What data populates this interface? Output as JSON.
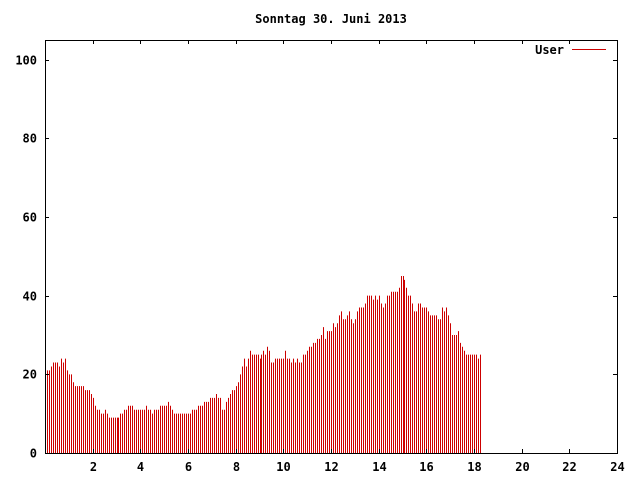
{
  "chart_data": {
    "type": "bar",
    "title": "Sonntag 30. Juni 2013",
    "xlabel": "",
    "ylabel": "",
    "xlim": [
      0,
      24
    ],
    "ylim": [
      0,
      105
    ],
    "xticks": [
      2,
      4,
      6,
      8,
      10,
      12,
      14,
      16,
      18,
      20,
      22,
      24
    ],
    "xtick_labels": [
      "2",
      "4",
      "6",
      "8",
      "10",
      "12",
      "14",
      "16",
      "18",
      "20",
      "22",
      "24"
    ],
    "yticks": [
      0,
      20,
      40,
      60,
      80,
      100
    ],
    "ytick_labels": [
      "0",
      "20",
      "40",
      "60",
      "80",
      "100"
    ],
    "grid": false,
    "legend_position": "top-right",
    "series": [
      {
        "name": "User",
        "color": "#cc0000",
        "interval_minutes": 5,
        "values": [
          22,
          21,
          21,
          22,
          23,
          23,
          23,
          22,
          24,
          23,
          24,
          21,
          20,
          20,
          18,
          17,
          17,
          17,
          17,
          17,
          16,
          16,
          16,
          15,
          14,
          12,
          11,
          11,
          10,
          10,
          11,
          10,
          9,
          9,
          9,
          9,
          9,
          9,
          10,
          10,
          11,
          11,
          12,
          12,
          12,
          11,
          11,
          11,
          11,
          11,
          11,
          12,
          11,
          11,
          10,
          11,
          11,
          11,
          12,
          12,
          12,
          12,
          13,
          12,
          11,
          10,
          10,
          10,
          10,
          10,
          10,
          10,
          10,
          10,
          11,
          11,
          11,
          12,
          12,
          12,
          13,
          13,
          13,
          14,
          14,
          14,
          15,
          14,
          14,
          11,
          11,
          13,
          14,
          15,
          16,
          16,
          17,
          18,
          20,
          22,
          24,
          22,
          24,
          26,
          25,
          25,
          25,
          25,
          24,
          25,
          26,
          25,
          27,
          26,
          23,
          23,
          24,
          24,
          24,
          24,
          24,
          26,
          24,
          24,
          23,
          24,
          23,
          24,
          23,
          23,
          25,
          25,
          26,
          27,
          27,
          28,
          28,
          29,
          29,
          30,
          32,
          29,
          31,
          31,
          31,
          33,
          32,
          33,
          35,
          36,
          34,
          34,
          35,
          36,
          34,
          33,
          34,
          36,
          37,
          37,
          37,
          38,
          40,
          40,
          40,
          39,
          40,
          39,
          40,
          38,
          37,
          38,
          40,
          40,
          41,
          41,
          41,
          41,
          42,
          45,
          45,
          44,
          42,
          40,
          40,
          38,
          36,
          36,
          38,
          38,
          37,
          37,
          37,
          36,
          35,
          35,
          35,
          35,
          34,
          34,
          37,
          36,
          37,
          35,
          33,
          30,
          30,
          30,
          31,
          28,
          27,
          26,
          25,
          25,
          25,
          25,
          25,
          25,
          24,
          25
        ]
      }
    ]
  }
}
